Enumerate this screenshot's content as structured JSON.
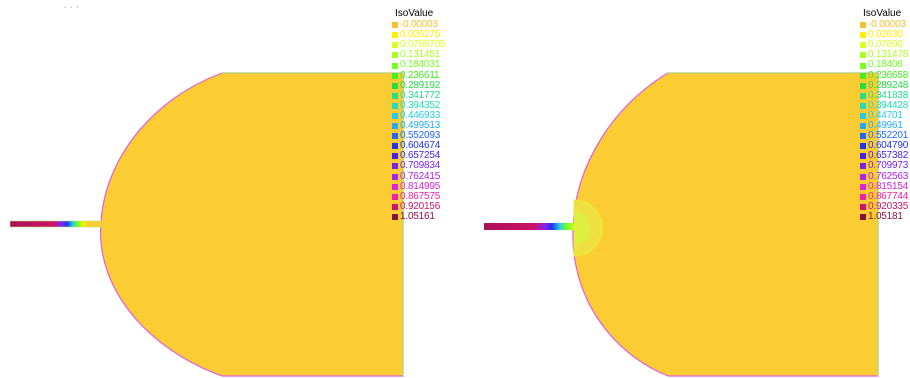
{
  "colors": {
    "background": "#ffffff",
    "field_fill": "#fccc33",
    "outline": "#e060e0",
    "outline_edge": "#b8e070",
    "head_center": "#d8f040"
  },
  "panels": [
    {
      "legend": {
        "title": "IsoValue",
        "entries": [
          {
            "label": "-0.00003",
            "color": "#f8c030"
          },
          {
            "label": "0.026275",
            "color": "#ffee00"
          },
          {
            "label": "0.0788705",
            "color": "#ddff22"
          },
          {
            "label": "0.131451",
            "color": "#aaff22"
          },
          {
            "label": "0.184031",
            "color": "#77ff22"
          },
          {
            "label": "0.236611",
            "color": "#44ee22"
          },
          {
            "label": "0.289192",
            "color": "#22dd44"
          },
          {
            "label": "0.341772",
            "color": "#22dd88"
          },
          {
            "label": "0.394352",
            "color": "#22ddbb"
          },
          {
            "label": "0.446933",
            "color": "#22ccee"
          },
          {
            "label": "0.499513",
            "color": "#22aaff"
          },
          {
            "label": "0.552093",
            "color": "#2266ff"
          },
          {
            "label": "0.604674",
            "color": "#2233ee"
          },
          {
            "label": "0.657254",
            "color": "#4422ee"
          },
          {
            "label": "0.709834",
            "color": "#7722ee"
          },
          {
            "label": "0.762415",
            "color": "#aa22ee"
          },
          {
            "label": "0.814995",
            "color": "#dd22dd"
          },
          {
            "label": "0.867575",
            "color": "#ee22aa"
          },
          {
            "label": "0.920156",
            "color": "#cc1177"
          },
          {
            "label": "1.05161",
            "color": "#881144"
          }
        ]
      }
    },
    {
      "legend": {
        "title": "IsoValue",
        "entries": [
          {
            "label": "-0.00003",
            "color": "#f8c030"
          },
          {
            "label": "0.02630",
            "color": "#ffee00"
          },
          {
            "label": "0.07890",
            "color": "#ddff22"
          },
          {
            "label": "0.131478",
            "color": "#aaff22"
          },
          {
            "label": "0.18406",
            "color": "#77ff22"
          },
          {
            "label": "0.236658",
            "color": "#44ee22"
          },
          {
            "label": "0.289248",
            "color": "#22dd44"
          },
          {
            "label": "0.341838",
            "color": "#22dd88"
          },
          {
            "label": "0.394428",
            "color": "#22ddbb"
          },
          {
            "label": "0.44701",
            "color": "#22ccee"
          },
          {
            "label": "0.49961",
            "color": "#22aaff"
          },
          {
            "label": "0.552201",
            "color": "#2266ff"
          },
          {
            "label": "0.604790",
            "color": "#2233ee"
          },
          {
            "label": "0.657382",
            "color": "#4422ee"
          },
          {
            "label": "0.709973",
            "color": "#7722ee"
          },
          {
            "label": "0.762563",
            "color": "#aa22ee"
          },
          {
            "label": "0.815154",
            "color": "#dd22dd"
          },
          {
            "label": "0.867744",
            "color": "#ee22aa"
          },
          {
            "label": "0.920335",
            "color": "#cc1177"
          },
          {
            "label": "1.05181",
            "color": "#881144"
          }
        ]
      }
    }
  ]
}
